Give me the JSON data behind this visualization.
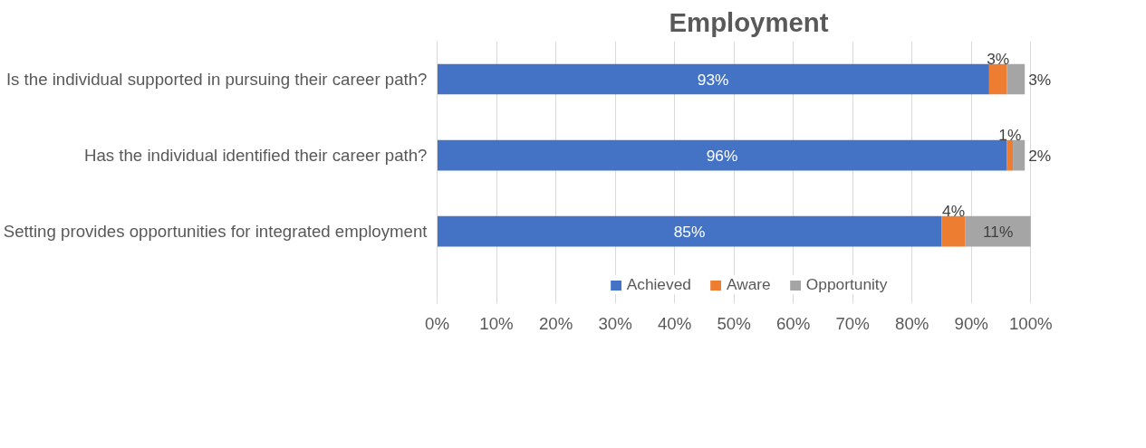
{
  "chart_data": {
    "type": "bar",
    "orientation": "horizontal",
    "stacked": true,
    "title": "Employment",
    "categories": [
      "Is the individual supported in pursuing their career path?",
      "Has the individual identified their career path?",
      "Setting provides opportunities for integrated employment"
    ],
    "series": [
      {
        "name": "Achieved",
        "color": "#4472c4",
        "values": [
          93,
          96,
          85
        ],
        "value_labels": [
          "93%",
          "96%",
          "85%"
        ]
      },
      {
        "name": "Aware",
        "color": "#ed7d31",
        "values": [
          3,
          1,
          4
        ],
        "value_labels": [
          "3%",
          "1%",
          "4%"
        ]
      },
      {
        "name": "Opportunity",
        "color": "#a5a5a5",
        "values": [
          3,
          2,
          11
        ],
        "value_labels": [
          "3%",
          "2%",
          "11%"
        ]
      }
    ],
    "xlim": [
      0,
      100
    ],
    "xticks": [
      {
        "value": 0,
        "label": "0%"
      },
      {
        "value": 10,
        "label": "10%"
      },
      {
        "value": 20,
        "label": "20%"
      },
      {
        "value": 30,
        "label": "30%"
      },
      {
        "value": 40,
        "label": "40%"
      },
      {
        "value": 50,
        "label": "50%"
      },
      {
        "value": 60,
        "label": "60%"
      },
      {
        "value": 70,
        "label": "70%"
      },
      {
        "value": 80,
        "label": "80%"
      },
      {
        "value": 90,
        "label": "90%"
      },
      {
        "value": 100,
        "label": "100%"
      }
    ],
    "grid": "x",
    "legend": "bottom"
  }
}
